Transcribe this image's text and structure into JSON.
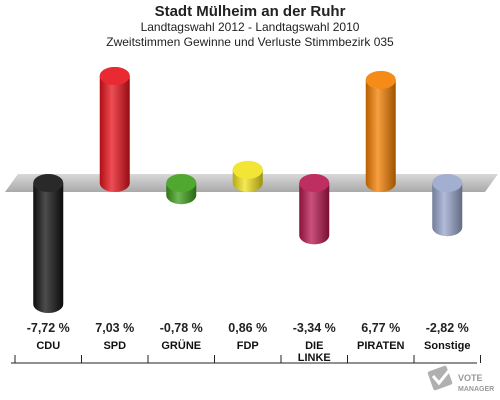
{
  "chart_data": {
    "type": "bar",
    "title": "Stadt Mülheim an der Ruhr",
    "subtitle1": "Landtagswahl 2012 - Landtagswahl 2010",
    "subtitle2": "Zweitstimmen Gewinne und Verluste Stimmbezirk 035",
    "categories": [
      "CDU",
      "SPD",
      "GRÜNE",
      "FDP",
      "DIE LINKE",
      "PIRATEN",
      "Sonstige"
    ],
    "values": [
      -7.72,
      7.03,
      -0.78,
      0.86,
      -3.34,
      6.77,
      -2.82
    ],
    "value_labels": [
      "-7,72 %",
      "7,03 %",
      "-0,78 %",
      "0,86 %",
      "-3,34 %",
      "6,77 %",
      "-2,82 %"
    ],
    "colors": [
      "#111111",
      "#e8121b",
      "#3e9e1a",
      "#f2e21c",
      "#b8174f",
      "#f47f00",
      "#98a6cc"
    ],
    "ylim": [
      -7.72,
      7.03
    ],
    "grid": false
  },
  "watermark": {
    "line1": "VOTE",
    "line2": "MANAGER",
    "icon": "ballot-check-icon"
  }
}
